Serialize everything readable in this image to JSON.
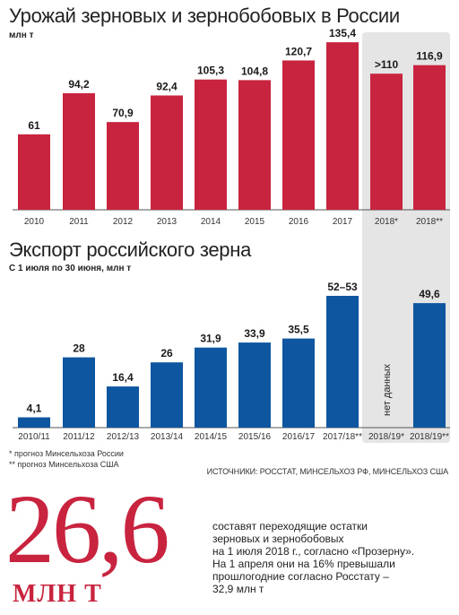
{
  "colors": {
    "harvest": "#c8233f",
    "export": "#0e56a0",
    "highlight_bg": "#e5e5e5"
  },
  "chart_data": [
    {
      "type": "bar",
      "title": "Урожай зерновых и зернобобовых в России",
      "subtitle": "млн т",
      "categories": [
        "2010",
        "2011",
        "2012",
        "2013",
        "2014",
        "2015",
        "2016",
        "2017",
        "2018*",
        "2018**"
      ],
      "values": [
        61,
        94.2,
        70.9,
        92.4,
        105.3,
        104.8,
        120.7,
        135.4,
        110,
        116.9
      ],
      "labels": [
        "61",
        "94,2",
        "70,9",
        "92,4",
        "105,3",
        "104,8",
        "120,7",
        "135,4",
        ">110",
        "116,9"
      ],
      "ylim": [
        0,
        140
      ]
    },
    {
      "type": "bar",
      "title": "Экспорт российского зерна",
      "subtitle": "С 1 июля по 30 июня, млн т",
      "categories": [
        "2010/11",
        "2011/12",
        "2012/13",
        "2013/14",
        "2014/15",
        "2015/16",
        "2016/17",
        "2017/18**",
        "2018/19*",
        "2018/19**"
      ],
      "values": [
        4.1,
        28,
        16.4,
        26,
        31.9,
        33.9,
        35.5,
        52.5,
        null,
        49.6
      ],
      "labels": [
        "4,1",
        "28",
        "16,4",
        "26",
        "31,9",
        "33,9",
        "35,5",
        "52–53",
        "",
        "49,6"
      ],
      "no_data_label": "нет данных",
      "ylim": [
        0,
        55
      ]
    }
  ],
  "footnotes": [
    "* прогноз Минсельхоза России",
    "** прогноз Минсельхоза США"
  ],
  "source": "ИСТОЧНИКИ: РОССТАТ, МИНСЕЛЬХОЗ РФ, МИНСЕЛЬХОЗ США",
  "big_number": "26,6",
  "big_unit": "МЛН Т",
  "description_lines": [
    "составят переходящие остатки",
    "зерновых и зернобобовых",
    "на 1 июля 2018 г., согласно «Прозерну».",
    "На 1 апреля они на 16% превышали",
    "прошлогодние согласно Росстату –",
    "32,9 млн т"
  ]
}
